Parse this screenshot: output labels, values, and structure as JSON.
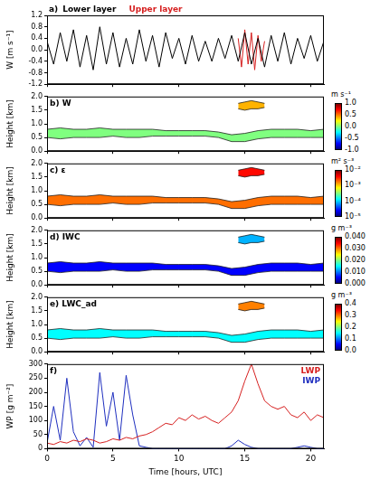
{
  "chart_data": [
    {
      "type": "line",
      "title": "a)",
      "ylabel": "W [m s⁻¹]",
      "legend": "top",
      "grid": false,
      "tick_labels": "y",
      "xlim": [
        0,
        21
      ],
      "xticks": [
        0,
        5,
        10,
        15,
        20
      ],
      "ylim": [
        -1.2,
        1.2
      ],
      "yticks": [
        -1.2,
        -0.8,
        -0.4,
        {
          "value": 0,
          "label": "0.0"
        },
        0.4,
        0.8,
        1.2
      ],
      "series": [
        {
          "name": "Lower layer",
          "color": "#000000",
          "x": [
            0,
            0.5,
            1,
            1.5,
            2,
            2.5,
            3,
            3.5,
            4,
            4.5,
            5,
            5.5,
            6,
            6.5,
            7,
            7.5,
            8,
            8.5,
            9,
            9.5,
            10,
            10.5,
            11,
            11.5,
            12,
            12.5,
            13,
            13.5,
            14,
            14.5,
            15,
            15.5,
            16,
            16.5,
            17,
            17.5,
            18,
            18.5,
            19,
            19.5,
            20,
            20.5,
            21
          ],
          "values": [
            0.3,
            -0.5,
            0.6,
            -0.4,
            0.7,
            -0.6,
            0.5,
            -0.7,
            0.8,
            -0.5,
            0.6,
            -0.6,
            0.4,
            -0.5,
            0.7,
            -0.4,
            0.5,
            -0.6,
            0.6,
            -0.3,
            0.4,
            -0.5,
            0.5,
            -0.4,
            0.3,
            -0.4,
            0.4,
            -0.3,
            0.5,
            -0.4,
            0.6,
            -0.5,
            0.4,
            -0.6,
            0.5,
            -0.4,
            0.6,
            -0.5,
            0.4,
            -0.3,
            0.5,
            -0.4,
            0.3
          ]
        },
        {
          "name": "Upper layer",
          "color": "#d62020",
          "x": [
            14.5,
            14.75,
            15,
            15.25,
            15.5,
            15.75,
            16,
            16.25,
            16.5
          ],
          "values": [
            0.4,
            -0.6,
            0.7,
            -0.5,
            0.6,
            -0.7,
            0.5,
            -0.4,
            0.3
          ]
        }
      ]
    },
    {
      "type": "heatmap",
      "title": "b) W",
      "ylabel": "Height [km]",
      "grid": false,
      "tick_labels": "y",
      "xlim": [
        0,
        21
      ],
      "xticks": [
        0,
        5,
        10,
        15,
        20
      ],
      "ylim": [
        0,
        2
      ],
      "yticks": [
        {
          "value": 0,
          "label": "0.0"
        },
        0.5,
        {
          "value": 1,
          "label": "1.0"
        },
        1.5,
        {
          "value": 2,
          "label": "2.0"
        }
      ],
      "layers": [
        {
          "x": [
            0,
            1,
            2,
            3,
            4,
            5,
            6,
            7,
            8,
            9,
            10,
            11,
            12,
            13,
            14,
            15,
            16,
            17,
            18,
            19,
            20,
            21
          ],
          "base": [
            0.5,
            0.45,
            0.5,
            0.5,
            0.5,
            0.55,
            0.5,
            0.5,
            0.55,
            0.55,
            0.55,
            0.55,
            0.55,
            0.5,
            0.35,
            0.35,
            0.45,
            0.5,
            0.5,
            0.5,
            0.5,
            0.5
          ],
          "top": [
            0.8,
            0.85,
            0.8,
            0.8,
            0.85,
            0.8,
            0.8,
            0.8,
            0.8,
            0.75,
            0.75,
            0.75,
            0.75,
            0.7,
            0.6,
            0.65,
            0.75,
            0.8,
            0.8,
            0.8,
            0.75,
            0.8
          ],
          "value": 0.0
        },
        {
          "x": [
            14.5,
            15,
            15.5,
            16,
            16.5
          ],
          "base": [
            1.55,
            1.5,
            1.55,
            1.55,
            1.6
          ],
          "top": [
            1.75,
            1.8,
            1.85,
            1.8,
            1.75
          ],
          "value": 0.4
        }
      ],
      "colorbar": {
        "label": "m s⁻¹",
        "range": [
          -1,
          1
        ],
        "ticks": [
          {
            "value": -1,
            "label": "-1.0"
          },
          -0.5,
          {
            "value": 0,
            "label": "0.0"
          },
          0.5,
          {
            "value": 1,
            "label": "1.0"
          }
        ]
      }
    },
    {
      "type": "heatmap",
      "title": "c) ε",
      "ylabel": "Height [km]",
      "grid": false,
      "tick_labels": "y",
      "xlim": [
        0,
        21
      ],
      "xticks": [
        0,
        5,
        10,
        15,
        20
      ],
      "ylim": [
        0,
        2
      ],
      "yticks": [
        {
          "value": 0,
          "label": "0.0"
        },
        0.5,
        {
          "value": 1,
          "label": "1.0"
        },
        1.5,
        {
          "value": 2,
          "label": "2.0"
        }
      ],
      "layers": [
        {
          "x": [
            0,
            1,
            2,
            3,
            4,
            5,
            6,
            7,
            8,
            9,
            10,
            11,
            12,
            13,
            14,
            15,
            16,
            17,
            18,
            19,
            20,
            21
          ],
          "base": [
            0.5,
            0.45,
            0.5,
            0.5,
            0.5,
            0.55,
            0.5,
            0.5,
            0.55,
            0.55,
            0.55,
            0.55,
            0.55,
            0.5,
            0.35,
            0.35,
            0.45,
            0.5,
            0.5,
            0.5,
            0.5,
            0.5
          ],
          "top": [
            0.8,
            0.85,
            0.8,
            0.8,
            0.85,
            0.8,
            0.8,
            0.8,
            0.8,
            0.75,
            0.75,
            0.75,
            0.75,
            0.7,
            0.6,
            0.65,
            0.75,
            0.8,
            0.8,
            0.8,
            0.75,
            0.8
          ],
          "value": 0.002
        },
        {
          "x": [
            14.5,
            15,
            15.5,
            16,
            16.5
          ],
          "base": [
            1.55,
            1.5,
            1.55,
            1.55,
            1.6
          ],
          "top": [
            1.75,
            1.8,
            1.85,
            1.8,
            1.75
          ],
          "value": 0.004
        }
      ],
      "colorbar": {
        "label": "m² s⁻³",
        "range": [
          1e-05,
          0.01
        ],
        "log": true,
        "ticks": [
          {
            "value": 1e-05,
            "label": "10⁻⁵"
          },
          {
            "value": 0.0001,
            "label": "10⁻⁴"
          },
          {
            "value": 0.001,
            "label": "10⁻³"
          },
          {
            "value": 0.01,
            "label": "10⁻²"
          }
        ]
      }
    },
    {
      "type": "heatmap",
      "title": "d) IWC",
      "ylabel": "Height [km]",
      "grid": false,
      "tick_labels": "y",
      "xlim": [
        0,
        21
      ],
      "xticks": [
        0,
        5,
        10,
        15,
        20
      ],
      "ylim": [
        0,
        2
      ],
      "yticks": [
        {
          "value": 0,
          "label": "0.0"
        },
        0.5,
        {
          "value": 1,
          "label": "1.0"
        },
        1.5,
        {
          "value": 2,
          "label": "2.0"
        }
      ],
      "layers": [
        {
          "x": [
            0,
            1,
            2,
            3,
            4,
            5,
            6,
            7,
            8,
            9,
            10,
            11,
            12,
            13,
            14,
            15,
            16,
            17,
            18,
            19,
            20,
            21
          ],
          "base": [
            0.5,
            0.45,
            0.5,
            0.5,
            0.5,
            0.55,
            0.5,
            0.5,
            0.55,
            0.55,
            0.55,
            0.55,
            0.55,
            0.5,
            0.35,
            0.35,
            0.45,
            0.5,
            0.5,
            0.5,
            0.5,
            0.5
          ],
          "top": [
            0.8,
            0.85,
            0.8,
            0.8,
            0.85,
            0.8,
            0.8,
            0.8,
            0.8,
            0.75,
            0.75,
            0.75,
            0.75,
            0.7,
            0.6,
            0.65,
            0.75,
            0.8,
            0.8,
            0.8,
            0.75,
            0.8
          ],
          "value": 0.005
        },
        {
          "x": [
            14.5,
            15,
            15.5,
            16,
            16.5
          ],
          "base": [
            1.55,
            1.5,
            1.55,
            1.55,
            1.6
          ],
          "top": [
            1.75,
            1.8,
            1.85,
            1.8,
            1.75
          ],
          "value": 0.012
        }
      ],
      "colorbar": {
        "label": "g m⁻³",
        "range": [
          0,
          0.04
        ],
        "ticks": [
          {
            "value": 0,
            "label": "0.000"
          },
          {
            "value": 0.01,
            "label": "0.010"
          },
          {
            "value": 0.02,
            "label": "0.020"
          },
          {
            "value": 0.03,
            "label": "0.030"
          },
          {
            "value": 0.04,
            "label": "0.040"
          }
        ]
      }
    },
    {
      "type": "heatmap",
      "title": "e) LWC_ad",
      "ylabel": "Height [km]",
      "grid": false,
      "tick_labels": "y",
      "xlim": [
        0,
        21
      ],
      "xticks": [
        0,
        5,
        10,
        15,
        20
      ],
      "ylim": [
        0,
        2
      ],
      "yticks": [
        {
          "value": 0,
          "label": "0.0"
        },
        0.5,
        {
          "value": 1,
          "label": "1.0"
        },
        1.5,
        {
          "value": 2,
          "label": "2.0"
        }
      ],
      "layers": [
        {
          "x": [
            0,
            1,
            2,
            3,
            4,
            5,
            6,
            7,
            8,
            9,
            10,
            11,
            12,
            13,
            14,
            15,
            16,
            17,
            18,
            19,
            20,
            21
          ],
          "base": [
            0.5,
            0.45,
            0.5,
            0.5,
            0.5,
            0.55,
            0.5,
            0.5,
            0.55,
            0.55,
            0.55,
            0.55,
            0.55,
            0.5,
            0.35,
            0.35,
            0.45,
            0.5,
            0.5,
            0.5,
            0.5,
            0.5
          ],
          "top": [
            0.8,
            0.85,
            0.8,
            0.8,
            0.85,
            0.8,
            0.8,
            0.8,
            0.8,
            0.75,
            0.75,
            0.75,
            0.75,
            0.7,
            0.6,
            0.65,
            0.75,
            0.8,
            0.8,
            0.8,
            0.75,
            0.8
          ],
          "value": 0.15
        },
        {
          "x": [
            14.5,
            15,
            15.5,
            16,
            16.5
          ],
          "base": [
            1.55,
            1.5,
            1.55,
            1.55,
            1.6
          ],
          "top": [
            1.75,
            1.8,
            1.85,
            1.8,
            1.75
          ],
          "value": 0.3
        }
      ],
      "colorbar": {
        "label": "g m⁻³",
        "range": [
          0,
          0.4
        ],
        "ticks": [
          {
            "value": 0,
            "label": "0.0"
          },
          0.1,
          0.2,
          0.3,
          0.4
        ]
      }
    },
    {
      "type": "line",
      "title": "f)",
      "ylabel": "WP [g m⁻²]",
      "xlabel": "Time [hours, UTC]",
      "legend": "upper right",
      "grid": false,
      "xlim": [
        0,
        21
      ],
      "xticks": [
        0,
        5,
        10,
        15,
        20
      ],
      "ylim": [
        0,
        300
      ],
      "yticks": [
        0,
        50,
        100,
        150,
        200,
        250,
        300
      ],
      "series": [
        {
          "name": "LWP",
          "color": "#d62020",
          "x": [
            0,
            0.5,
            1,
            1.5,
            2,
            2.5,
            3,
            3.5,
            4,
            4.5,
            5,
            5.5,
            6,
            6.5,
            7,
            7.5,
            8,
            8.5,
            9,
            9.5,
            10,
            10.5,
            11,
            11.5,
            12,
            12.5,
            13,
            13.5,
            14,
            14.5,
            15,
            15.5,
            16,
            16.5,
            17,
            17.5,
            18,
            18.5,
            19,
            19.5,
            20,
            20.5,
            21
          ],
          "values": [
            20,
            15,
            25,
            20,
            30,
            25,
            35,
            30,
            20,
            25,
            35,
            30,
            40,
            35,
            45,
            50,
            60,
            75,
            90,
            85,
            110,
            100,
            120,
            105,
            115,
            100,
            90,
            110,
            130,
            170,
            240,
            300,
            230,
            170,
            150,
            140,
            150,
            120,
            110,
            130,
            100,
            120,
            110
          ]
        },
        {
          "name": "IWP",
          "color": "#1f2fbf",
          "x": [
            0,
            0.5,
            1,
            1.5,
            2,
            2.5,
            3,
            3.5,
            4,
            4.5,
            5,
            5.5,
            6,
            6.5,
            7,
            7.5,
            8,
            8.5,
            9,
            9.5,
            10,
            10.5,
            11,
            11.5,
            12,
            12.5,
            13,
            13.5,
            14,
            14.5,
            15,
            15.5,
            16,
            16.5,
            17,
            17.5,
            18,
            18.5,
            19,
            19.5,
            20,
            20.5,
            21
          ],
          "values": [
            20,
            150,
            30,
            250,
            60,
            10,
            40,
            5,
            270,
            80,
            200,
            30,
            260,
            120,
            10,
            5,
            0,
            0,
            0,
            0,
            0,
            0,
            0,
            0,
            0,
            0,
            0,
            0,
            10,
            30,
            15,
            5,
            0,
            0,
            0,
            0,
            0,
            0,
            5,
            10,
            5,
            0,
            0
          ]
        }
      ]
    }
  ]
}
